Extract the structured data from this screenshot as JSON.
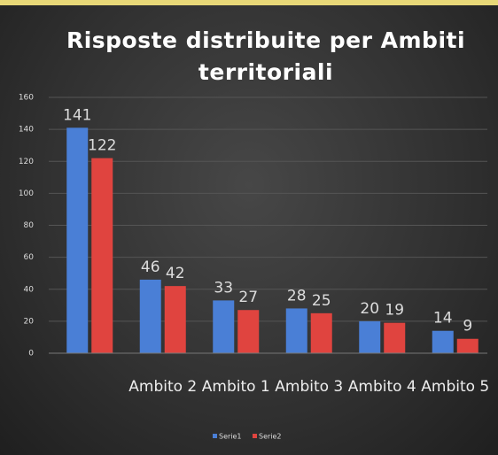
{
  "chart_data": {
    "type": "bar",
    "title": "Risposte distribuite per Ambiti territoriali",
    "categories": [
      null,
      "Ambito 2",
      "Ambito 1",
      "Ambito 3",
      "Ambito 4",
      "Ambito 5"
    ],
    "series": [
      {
        "name": "Serie1",
        "color": "#4a7fd6",
        "values": [
          141,
          46,
          33,
          28,
          20,
          14
        ]
      },
      {
        "name": "Serie2",
        "color": "#e0443f",
        "values": [
          122,
          42,
          27,
          25,
          19,
          9
        ]
      }
    ],
    "ylim": [
      0,
      160
    ],
    "yticks": [
      0,
      20,
      40,
      60,
      80,
      100,
      120,
      140,
      160
    ],
    "grid": true,
    "legend": "bottom"
  }
}
